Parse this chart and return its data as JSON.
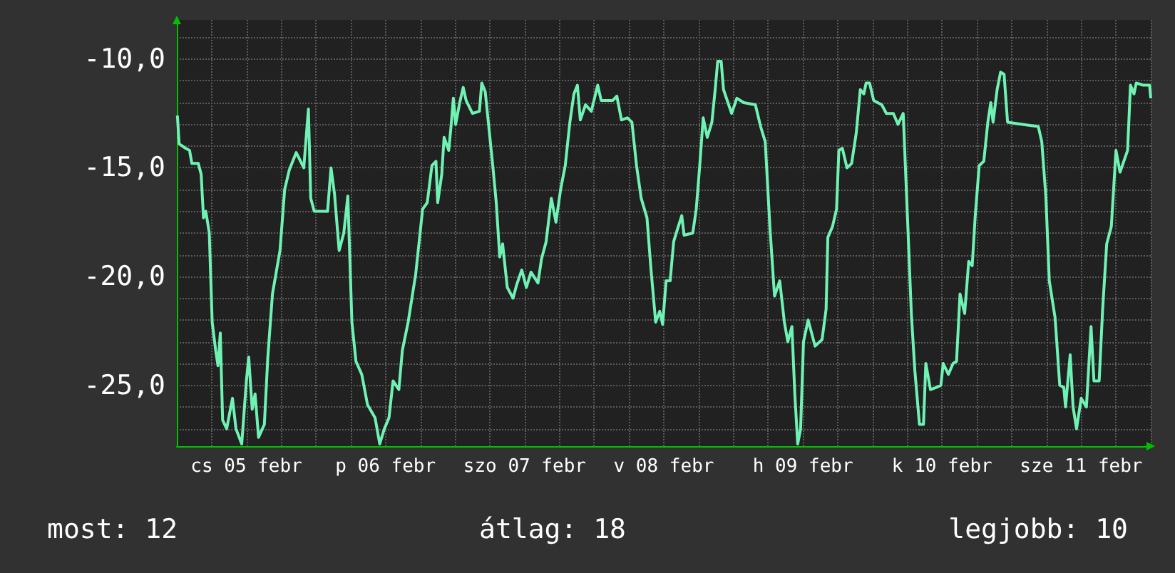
{
  "chart_data": {
    "type": "line",
    "x": [
      "--02-05T00:06",
      "--02-05T00:24",
      "--02-05T01:30",
      "--02-05T02:12",
      "--02-05T02:36",
      "--02-05T03:42",
      "--02-05T04:12",
      "--02-05T04:36",
      "--02-05T05:00",
      "--02-05T05:36",
      "--02-05T06:06",
      "--02-05T06:42",
      "--02-05T07:06",
      "--02-05T07:30",
      "--02-05T07:54",
      "--02-05T08:36",
      "--02-05T09:36",
      "--02-05T10:12",
      "--02-05T11:12",
      "--02-05T12:00",
      "--02-05T12:24",
      "--02-05T13:00",
      "--02-05T13:30",
      "--02-05T14:06",
      "--02-05T15:06",
      "--02-05T15:42",
      "--02-05T16:30",
      "--02-05T17:48",
      "--02-05T18:36",
      "--02-05T19:24",
      "--02-05T20:36",
      "--02-05T21:54",
      "--02-05T22:42",
      "--02-05T23:06",
      "--02-05T23:42",
      "--02-06T02:00",
      "--02-06T02:36",
      "--02-06T03:12",
      "--02-06T04:00",
      "--02-06T04:48",
      "--02-06T05:30",
      "--02-06T06:12",
      "--02-06T06:54",
      "--02-06T07:54",
      "--02-06T08:54",
      "--02-06T10:12",
      "--02-06T11:00",
      "--02-06T11:48",
      "--02-06T12:36",
      "--02-06T13:18",
      "--02-06T14:18",
      "--02-06T14:54",
      "--02-06T15:54",
      "--02-06T17:12",
      "--02-06T18:24",
      "--02-06T19:12",
      "--02-06T20:00",
      "--02-06T20:42",
      "--02-06T21:00",
      "--02-06T21:42",
      "--02-06T22:06",
      "--02-06T22:54",
      "--02-06T23:18",
      "--02-06T23:42",
      "--02-07T00:06",
      "--02-07T00:48",
      "--02-07T01:24",
      "--02-07T01:54",
      "--02-07T03:00",
      "--02-07T04:12",
      "--02-07T04:36",
      "--02-07T05:12",
      "--02-07T06:30",
      "--02-07T07:06",
      "--02-07T07:42",
      "--02-07T08:12",
      "--02-07T09:00",
      "--02-07T10:00",
      "--02-07T10:36",
      "--02-07T11:30",
      "--02-07T12:18",
      "--02-07T13:06",
      "--02-07T14:18",
      "--02-07T14:54",
      "--02-07T15:42",
      "--02-07T16:36",
      "--02-07T17:24",
      "--02-07T18:12",
      "--02-07T19:00",
      "--02-07T19:48",
      "--02-07T20:30",
      "--02-07T21:06",
      "--02-07T21:36",
      "--02-07T22:30",
      "--02-07T23:30",
      "--02-08T00:36",
      "--02-08T01:12",
      "--02-08T03:12",
      "--02-08T03:54",
      "--02-08T04:42",
      "--02-08T05:42",
      "--02-08T06:30",
      "--02-08T07:18",
      "--02-08T08:06",
      "--02-08T09:06",
      "--02-08T09:48",
      "--02-08T10:36",
      "--02-08T11:18",
      "--02-08T11:48",
      "--02-08T12:24",
      "--02-08T13:06",
      "--02-08T13:42",
      "--02-08T14:30",
      "--02-08T15:06",
      "--02-08T15:30",
      "--02-08T17:00",
      "--02-08T17:36",
      "--02-08T18:12",
      "--02-08T18:48",
      "--02-08T19:30",
      "--02-08T20:18",
      "--02-08T20:54",
      "--02-08T21:18",
      "--02-08T21:54",
      "--02-08T22:18",
      "--02-08T23:42",
      "--02-09T00:36",
      "--02-09T01:48",
      "--02-09T03:48",
      "--02-09T04:42",
      "--02-09T05:30",
      "--02-09T06:18",
      "--02-09T07:06",
      "--02-09T08:00",
      "--02-09T08:48",
      "--02-09T09:24",
      "--02-09T10:06",
      "--02-09T10:36",
      "--02-09T11:06",
      "--02-09T11:36",
      "--02-09T12:06",
      "--02-09T12:54",
      "--02-09T14:06",
      "--02-09T15:18",
      "--02-09T16:00",
      "--02-09T16:18",
      "--02-09T17:06",
      "--02-09T17:48",
      "--02-09T18:12",
      "--02-09T18:48",
      "--02-09T19:36",
      "--02-09T20:24",
      "--02-09T21:12",
      "--02-09T21:54",
      "--02-09T22:30",
      "--02-09T22:54",
      "--02-09T23:30",
      "--02-10T00:12",
      "--02-10T01:36",
      "--02-10T02:24",
      "--02-10T03:36",
      "--02-10T04:24",
      "--02-10T05:18",
      "--02-10T06:06",
      "--02-10T06:42",
      "--02-10T07:18",
      "--02-10T08:06",
      "--02-10T08:48",
      "--02-10T09:12",
      "--02-10T10:00",
      "--02-10T11:00",
      "--02-10T11:48",
      "--02-10T12:12",
      "--02-10T13:06",
      "--02-10T13:54",
      "--02-10T14:30",
      "--02-10T15:06",
      "--02-10T15:54",
      "--02-10T16:36",
      "--02-10T17:12",
      "--02-10T17:42",
      "--02-10T18:24",
      "--02-10T19:12",
      "--02-10T19:54",
      "--02-10T20:24",
      "--02-10T20:48",
      "--02-10T21:30",
      "--02-10T22:06",
      "--02-10T22:42",
      "--02-10T23:18",
      "--02-11T01:48",
      "--02-11T04:36",
      "--02-11T05:12",
      "--02-11T05:54",
      "--02-11T06:30",
      "--02-11T07:30",
      "--02-11T08:18",
      "--02-11T09:00",
      "--02-11T09:18",
      "--02-11T10:06",
      "--02-11T10:36",
      "--02-11T11:12",
      "--02-11T12:00",
      "--02-11T12:54",
      "--02-11T13:42",
      "--02-11T14:12",
      "--02-11T15:06",
      "--02-11T15:42",
      "--02-11T16:24",
      "--02-11T17:12",
      "--02-11T18:00",
      "--02-11T18:42",
      "--02-11T20:00",
      "--02-11T20:30",
      "--02-11T21:06",
      "--02-11T21:30",
      "--02-11T22:42",
      "--02-11T23:48",
      "--02-12T00:00"
    ],
    "series": [
      {
        "color": "#70f2b4",
        "values": [
          -12.6,
          -13.9,
          -14.1,
          -14.2,
          -14.8,
          -14.8,
          -15.3,
          -17.3,
          -17.0,
          -18.0,
          -22.1,
          -23.4,
          -24.1,
          -22.6,
          -26.6,
          -27.0,
          -25.6,
          -27.0,
          -27.7,
          -24.8,
          -23.7,
          -26.1,
          -25.4,
          -27.4,
          -26.8,
          -23.7,
          -20.8,
          -18.8,
          -16.0,
          -15.1,
          -14.3,
          -15.0,
          -12.3,
          -16.4,
          -17.0,
          -17.0,
          -15.0,
          -16.2,
          -18.8,
          -18.0,
          -16.3,
          -22.1,
          -23.9,
          -24.5,
          -25.9,
          -26.5,
          -27.7,
          -27.0,
          -26.5,
          -24.8,
          -25.2,
          -23.4,
          -22.1,
          -19.9,
          -16.9,
          -16.6,
          -14.9,
          -14.7,
          -16.6,
          -15.3,
          -13.6,
          -14.2,
          -13.1,
          -11.8,
          -13.0,
          -12.0,
          -11.3,
          -11.9,
          -12.5,
          -12.4,
          -11.1,
          -11.5,
          -14.9,
          -16.6,
          -19.1,
          -18.5,
          -20.5,
          -21.0,
          -20.4,
          -19.7,
          -20.5,
          -19.8,
          -20.3,
          -19.2,
          -18.4,
          -16.4,
          -17.5,
          -16.0,
          -14.9,
          -12.9,
          -11.6,
          -11.2,
          -12.8,
          -12.1,
          -12.4,
          -11.2,
          -11.9,
          -11.9,
          -11.7,
          -12.8,
          -12.7,
          -12.9,
          -14.9,
          -16.4,
          -17.3,
          -19.7,
          -22.1,
          -21.6,
          -22.2,
          -20.2,
          -20.2,
          -18.4,
          -17.7,
          -17.2,
          -18.1,
          -18.0,
          -16.9,
          -14.9,
          -12.7,
          -13.6,
          -12.9,
          -11.3,
          -10.1,
          -10.1,
          -11.4,
          -12.5,
          -11.8,
          -12.0,
          -12.1,
          -13.1,
          -13.8,
          -17.7,
          -20.9,
          -20.2,
          -22.1,
          -23.0,
          -22.3,
          -25.4,
          -27.7,
          -27.0,
          -23.0,
          -22.0,
          -23.2,
          -22.9,
          -21.5,
          -18.2,
          -17.7,
          -16.9,
          -14.2,
          -14.1,
          -15.0,
          -14.8,
          -13.4,
          -11.4,
          -11.6,
          -11.1,
          -11.1,
          -11.9,
          -12.1,
          -12.5,
          -12.5,
          -13.0,
          -12.5,
          -17.7,
          -21.7,
          -24.3,
          -26.8,
          -26.8,
          -24.0,
          -25.2,
          -25.1,
          -25.0,
          -24.0,
          -24.5,
          -24.0,
          -23.9,
          -20.8,
          -21.7,
          -19.3,
          -19.5,
          -17.3,
          -14.9,
          -14.7,
          -12.9,
          -12.0,
          -12.9,
          -11.4,
          -10.6,
          -10.7,
          -12.9,
          -13.0,
          -13.1,
          -13.8,
          -16.3,
          -20.2,
          -21.9,
          -25.0,
          -25.1,
          -26.0,
          -23.6,
          -26.0,
          -27.0,
          -25.6,
          -26.0,
          -22.3,
          -24.8,
          -24.8,
          -21.5,
          -18.5,
          -17.7,
          -14.2,
          -15.2,
          -14.2,
          -11.2,
          -11.6,
          -11.1,
          -11.2,
          -11.2,
          -11.8
        ]
      }
    ],
    "xlim": [
      "--02-05T00:00",
      "--02-12T00:00"
    ],
    "xticks": [
      {
        "value": "--02-05T00:00",
        "label": null
      },
      {
        "value": "--02-05T06:00",
        "label": null
      },
      {
        "value": "--02-05T12:00",
        "label": "cs 05 febr"
      },
      {
        "value": "--02-05T18:00",
        "label": null
      },
      {
        "value": "--02-06T00:00",
        "label": null
      },
      {
        "value": "--02-06T06:00",
        "label": null
      },
      {
        "value": "--02-06T12:00",
        "label": "p 06 febr"
      },
      {
        "value": "--02-06T18:00",
        "label": null
      },
      {
        "value": "--02-07T00:00",
        "label": null
      },
      {
        "value": "--02-07T06:00",
        "label": null
      },
      {
        "value": "--02-07T12:00",
        "label": "szo 07 febr"
      },
      {
        "value": "--02-07T18:00",
        "label": null
      },
      {
        "value": "--02-08T00:00",
        "label": null
      },
      {
        "value": "--02-08T06:00",
        "label": null
      },
      {
        "value": "--02-08T12:00",
        "label": "v 08 febr"
      },
      {
        "value": "--02-08T18:00",
        "label": null
      },
      {
        "value": "--02-09T00:00",
        "label": null
      },
      {
        "value": "--02-09T06:00",
        "label": null
      },
      {
        "value": "--02-09T12:00",
        "label": "h 09 febr"
      },
      {
        "value": "--02-09T18:00",
        "label": null
      },
      {
        "value": "--02-10T00:00",
        "label": null
      },
      {
        "value": "--02-10T06:00",
        "label": null
      },
      {
        "value": "--02-10T12:00",
        "label": "k 10 febr"
      },
      {
        "value": "--02-10T18:00",
        "label": null
      },
      {
        "value": "--02-11T00:00",
        "label": null
      },
      {
        "value": "--02-11T06:00",
        "label": null
      },
      {
        "value": "--02-11T12:00",
        "label": "sze 11 febr"
      },
      {
        "value": "--02-11T18:00",
        "label": null
      },
      {
        "value": "--02-12T00:00",
        "label": null
      }
    ],
    "ylim": [
      -27.8,
      -8.2
    ],
    "yticks": [
      {
        "value": -27,
        "label": null
      },
      {
        "value": -26,
        "label": null
      },
      {
        "value": -25,
        "label": "-25,0"
      },
      {
        "value": -24,
        "label": null
      },
      {
        "value": -23,
        "label": null
      },
      {
        "value": -22,
        "label": null
      },
      {
        "value": -21,
        "label": null
      },
      {
        "value": -20,
        "label": "-20,0"
      },
      {
        "value": -19,
        "label": null
      },
      {
        "value": -18,
        "label": null
      },
      {
        "value": -17,
        "label": null
      },
      {
        "value": -16,
        "label": null
      },
      {
        "value": -15,
        "label": "-15,0"
      },
      {
        "value": -14,
        "label": null
      },
      {
        "value": -13,
        "label": null
      },
      {
        "value": -12,
        "label": null
      },
      {
        "value": -11,
        "label": null
      },
      {
        "value": -10,
        "label": "-10,0"
      },
      {
        "value": -9,
        "label": null
      }
    ],
    "grid": true,
    "marker": "none",
    "line_style": "solid",
    "annotations": [
      "most: 12",
      "átlag: 18",
      "legjobb: 10"
    ]
  }
}
